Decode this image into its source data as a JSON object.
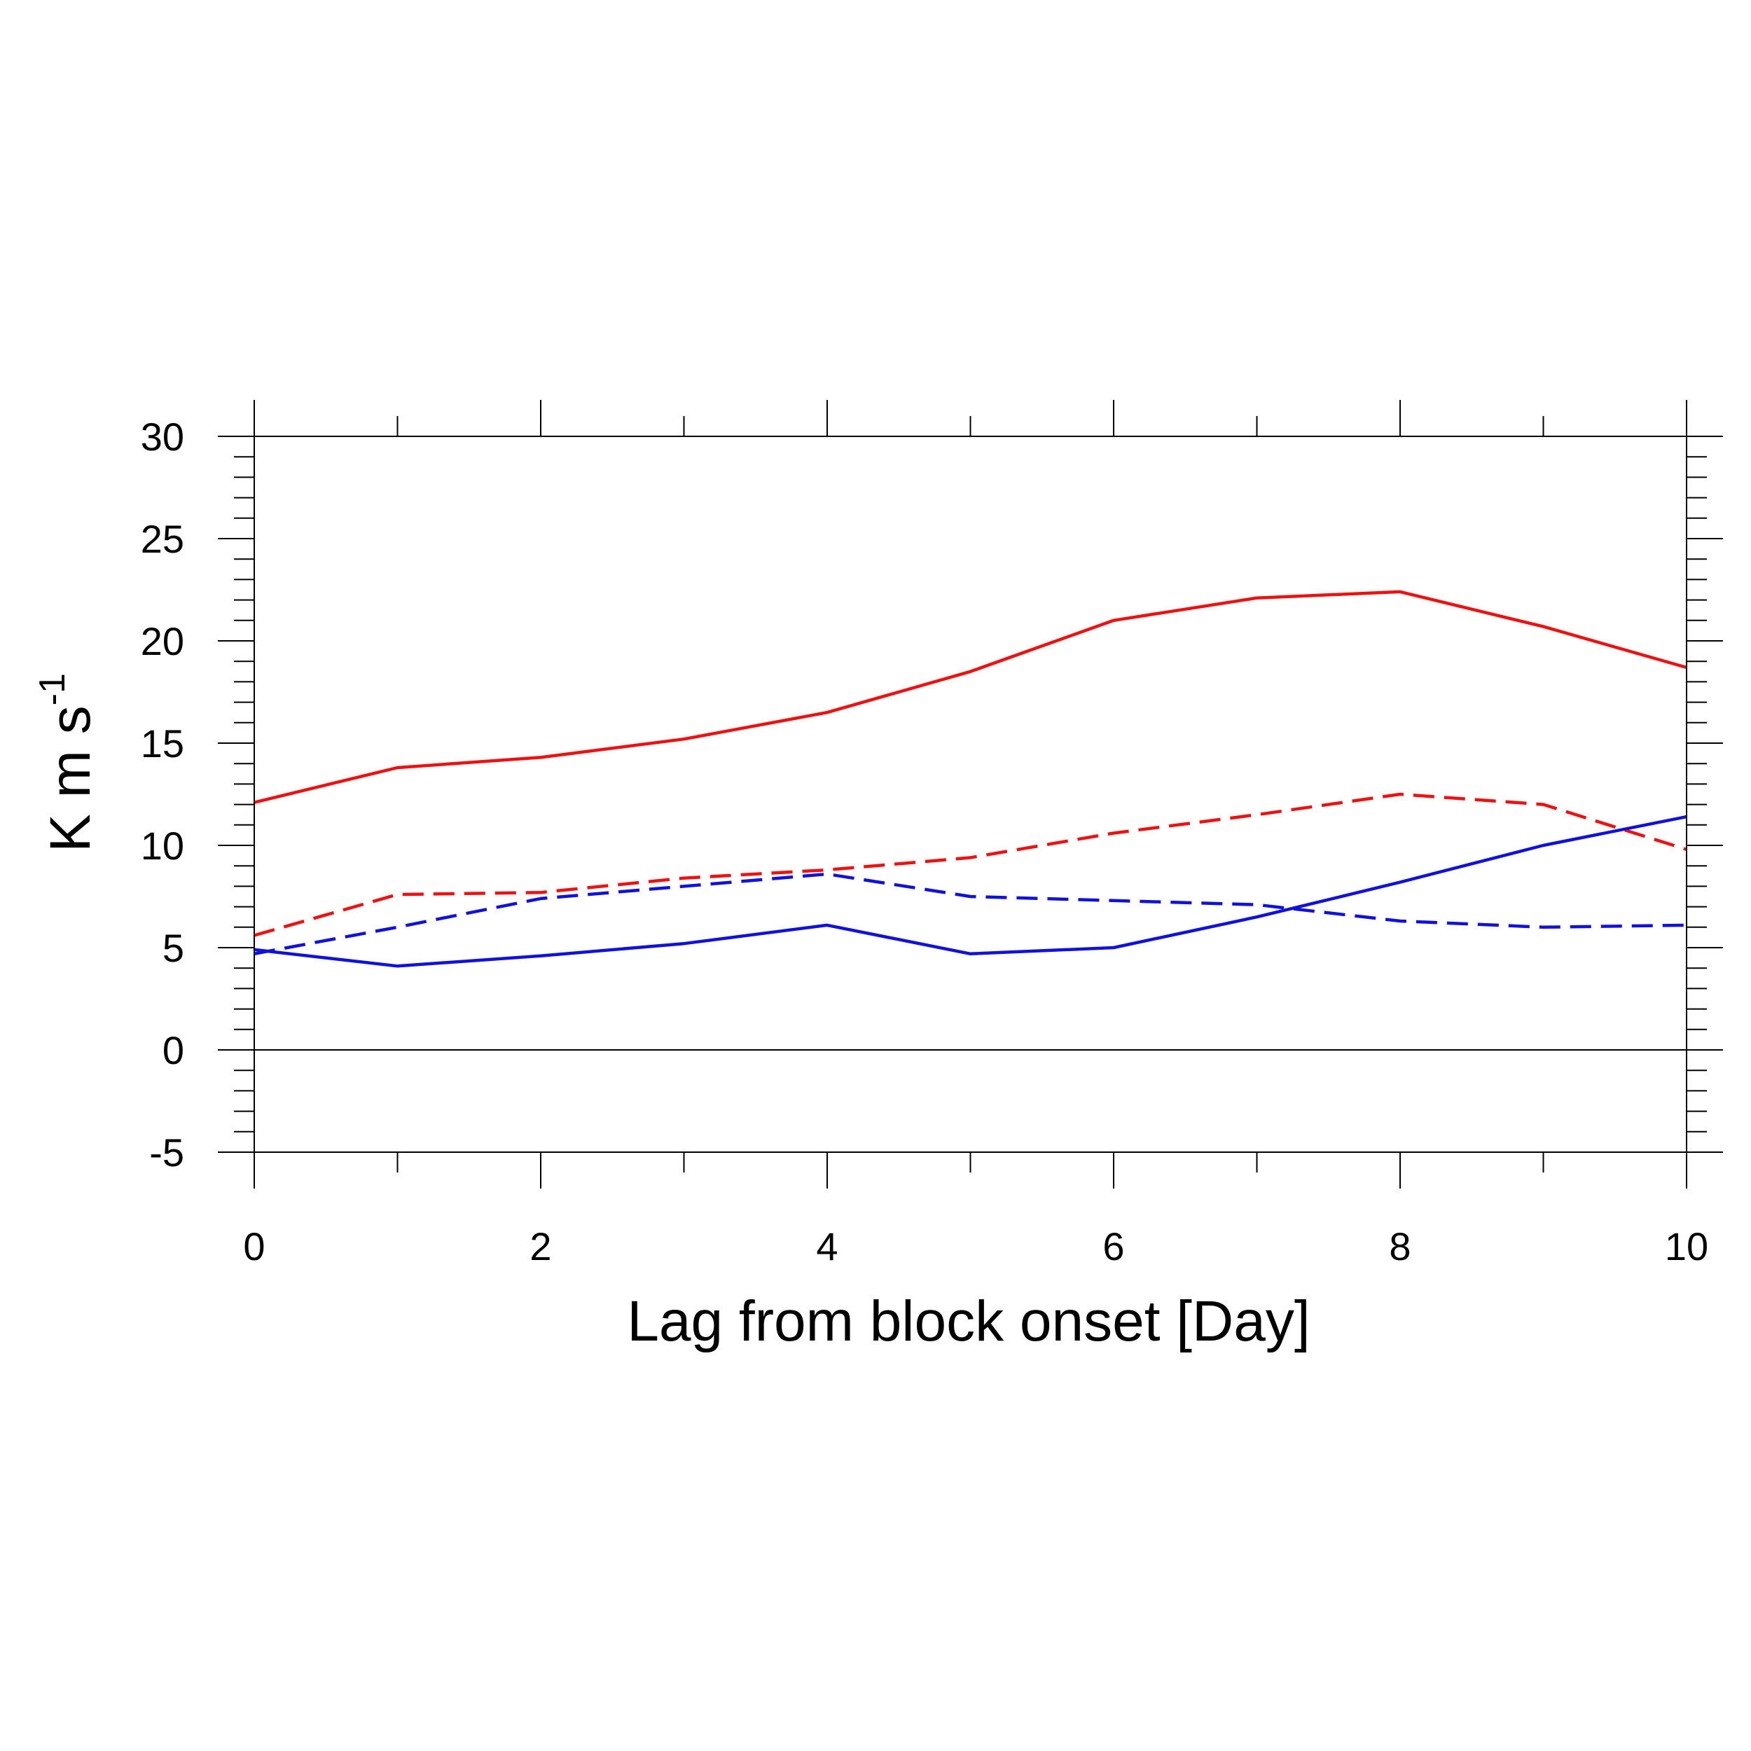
{
  "chart_data": {
    "type": "line",
    "xlabel": "Lag from block onset [Day]",
    "ylabel_main": "K m s",
    "ylabel_superscript": "-1",
    "xlim": [
      0,
      10
    ],
    "ylim": [
      -5,
      30
    ],
    "x_ticks": [
      0,
      2,
      4,
      6,
      8,
      10
    ],
    "y_ticks": [
      30,
      25,
      20,
      15,
      10,
      5,
      0,
      -5
    ],
    "zero_line": true,
    "x": [
      0,
      1,
      2,
      3,
      4,
      5,
      6,
      7,
      8,
      9,
      10
    ],
    "series": [
      {
        "color": "#ee1111",
        "dash": "solid",
        "values": [
          12.1,
          13.8,
          14.3,
          15.2,
          16.5,
          18.5,
          21.0,
          22.1,
          22.4,
          20.7,
          18.7
        ]
      },
      {
        "color": "#ee1111",
        "dash": "dashed",
        "values": [
          5.6,
          7.6,
          7.7,
          8.4,
          8.8,
          9.4,
          10.6,
          11.5,
          12.5,
          12.0,
          9.8
        ]
      },
      {
        "color": "#1111dd",
        "dash": "solid",
        "values": [
          4.9,
          4.1,
          4.6,
          5.2,
          6.1,
          4.7,
          5.0,
          6.5,
          8.2,
          10.0,
          11.4
        ]
      },
      {
        "color": "#1111dd",
        "dash": "dashed",
        "values": [
          4.7,
          6.0,
          7.4,
          8.0,
          8.6,
          7.5,
          7.3,
          7.1,
          6.3,
          6.0,
          6.1
        ]
      }
    ]
  }
}
